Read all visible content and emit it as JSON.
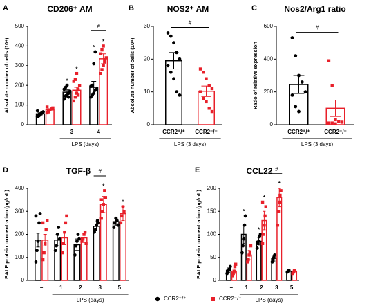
{
  "chart_data": [
    {
      "type": "grouped-bar",
      "letter": "A",
      "title": "CD206⁺ AM",
      "ylabel": "Absolute number of cells (10⁴)",
      "xlabel": "LPS (days)",
      "categories": [
        "–",
        "3",
        "4"
      ],
      "ylim": [
        0,
        500
      ],
      "yticks": [
        0,
        100,
        200,
        300,
        400,
        500
      ],
      "series": [
        {
          "color": "#000000",
          "values": [
            55,
            165,
            190
          ],
          "errors": [
            5,
            12,
            30
          ],
          "points": [
            [
              40,
              50,
              55,
              60,
              65,
              70,
              45,
              50,
              60
            ],
            [
              130,
              145,
              150,
              160,
              170,
              180,
              190,
              200,
              140
            ],
            [
              140,
              150,
              160,
              175,
              180,
              195,
              200,
              310,
              370
            ]
          ]
        },
        {
          "color": "#e8202a",
          "values": [
            75,
            175,
            335
          ],
          "errors": [
            6,
            15,
            25
          ],
          "points": [
            [
              60,
              70,
              75,
              80,
              85,
              90,
              65,
              75
            ],
            [
              120,
              140,
              160,
              180,
              200,
              220,
              230,
              260,
              150
            ],
            [
              260,
              280,
              300,
              320,
              340,
              360,
              380,
              400,
              330
            ]
          ]
        }
      ],
      "annotations": [
        {
          "text": "*",
          "category": 1,
          "series": 0
        },
        {
          "text": "*",
          "category": 1,
          "series": 1
        },
        {
          "text": "*",
          "category": 2,
          "series": 0
        },
        {
          "text": "*",
          "category": 2,
          "series": 1
        },
        {
          "text": "#",
          "from": [
            2,
            0
          ],
          "to": [
            2,
            1
          ]
        }
      ]
    },
    {
      "type": "bar",
      "letter": "B",
      "title": "NOS2⁺ AM",
      "ylabel": "Absolute number of cells (10⁴)",
      "xlabel": "LPS (3 days)",
      "categories": [
        "CCR2⁺/⁺",
        "CCR2⁻/⁻"
      ],
      "ylim": [
        0,
        30
      ],
      "yticks": [
        0,
        10,
        20,
        30
      ],
      "colors": [
        "#000000",
        "#e8202a"
      ],
      "values": [
        19.5,
        10.2
      ],
      "errors": [
        2.5,
        1.6
      ],
      "points": [
        [
          28,
          27,
          25,
          22,
          20,
          18,
          16,
          14,
          10,
          9
        ],
        [
          17,
          16,
          14,
          12,
          11,
          10,
          8,
          7,
          5,
          4
        ]
      ],
      "annotations": [
        {
          "text": "#",
          "from": [
            0
          ],
          "to": [
            1
          ]
        }
      ]
    },
    {
      "type": "bar",
      "letter": "C",
      "title": "Nos2/Arg1 ratio",
      "ylabel": "Ratio of relative expression",
      "xlabel": "LPS (3 days)",
      "categories": [
        "CCR2⁺/⁺",
        "CCR2⁻/⁻"
      ],
      "ylim": [
        0,
        600
      ],
      "yticks": [
        0,
        200,
        400,
        600
      ],
      "colors": [
        "#000000",
        "#e8202a"
      ],
      "values": [
        245,
        100
      ],
      "errors": [
        55,
        50
      ],
      "points": [
        [
          530,
          420,
          300,
          260,
          200,
          180,
          110,
          80
        ],
        [
          390,
          240,
          30,
          20,
          15,
          10,
          10,
          5
        ]
      ],
      "annotations": [
        {
          "text": "#",
          "from": [
            0
          ],
          "to": [
            1
          ]
        }
      ]
    },
    {
      "type": "grouped-bar",
      "letter": "D",
      "title": "TGF-β",
      "ylabel": "BALF protein concentration (pg/mL)",
      "xlabel": "LPS (days)",
      "categories": [
        "–",
        "1",
        "2",
        "3",
        "5"
      ],
      "ylim": [
        0,
        400
      ],
      "yticks": [
        0,
        100,
        200,
        300,
        400
      ],
      "series": [
        {
          "color": "#000000",
          "values": [
            175,
            175,
            155,
            235,
            255
          ],
          "errors": [
            30,
            25,
            25,
            20,
            15
          ],
          "points": [
            [
              80,
              130,
              170,
              250,
              290,
              280
            ],
            [
              130,
              150,
              200,
              230,
              180
            ],
            [
              110,
              150,
              170,
              200,
              180
            ],
            [
              210,
              220,
              240,
              260,
              250
            ],
            [
              230,
              250,
              270,
              260,
              240
            ]
          ]
        },
        {
          "color": "#e8202a",
          "values": [
            175,
            185,
            185,
            330,
            290
          ],
          "errors": [
            25,
            30,
            20,
            35,
            30
          ],
          "points": [
            [
              90,
              120,
              160,
              220,
              260,
              250
            ],
            [
              120,
              160,
              210,
              250,
              280
            ],
            [
              170,
              180,
              200,
              210,
              160
            ],
            [
              270,
              300,
              330,
              390,
              360,
              350
            ],
            [
              250,
              280,
              320,
              300
            ]
          ]
        }
      ],
      "annotations": [
        {
          "text": "#",
          "from": [
            3,
            0
          ],
          "to": [
            3,
            1
          ]
        },
        {
          "text": "*",
          "category": 3,
          "series": 1
        },
        {
          "text": "*",
          "category": 4,
          "series": 1
        }
      ]
    },
    {
      "type": "grouped-bar",
      "letter": "E",
      "title": "CCL22",
      "ylabel": "BALF protein concentration (pg/mL)",
      "xlabel": "LPS (days)",
      "categories": [
        "–",
        "1",
        "2",
        "3",
        "5"
      ],
      "ylim": [
        0,
        200
      ],
      "yticks": [
        0,
        50,
        100,
        150,
        200
      ],
      "series": [
        {
          "color": "#000000",
          "values": [
            22,
            100,
            85,
            48,
            20
          ],
          "errors": [
            5,
            20,
            8,
            6,
            2
          ],
          "points": [
            [
              15,
              18,
              22,
              25,
              30
            ],
            [
              60,
              75,
              90,
              120,
              140
            ],
            [
              70,
              80,
              85,
              95,
              100
            ],
            [
              40,
              45,
              50,
              55
            ],
            [
              18,
              20,
              22
            ]
          ]
        },
        {
          "color": "#e8202a",
          "values": [
            20,
            55,
            130,
            180,
            20
          ],
          "errors": [
            5,
            10,
            20,
            20,
            2
          ],
          "points": [
            [
              10,
              15,
              20,
              30,
              35
            ],
            [
              40,
              45,
              55,
              60,
              75
            ],
            [
              80,
              100,
              120,
              140,
              160,
              170
            ],
            [
              120,
              150,
              170,
              185,
              195
            ],
            [
              15,
              18,
              22
            ]
          ]
        }
      ],
      "annotations": [
        {
          "text": "*",
          "category": 1,
          "series": 0
        },
        {
          "text": "*",
          "category": 2,
          "series": 0
        },
        {
          "text": "*",
          "category": 2,
          "series": 1
        },
        {
          "text": "#",
          "from": [
            3,
            0
          ],
          "to": [
            3,
            1
          ]
        },
        {
          "text": "*",
          "category": 3,
          "series": 1
        }
      ]
    }
  ],
  "legend": [
    {
      "name": "CCR2⁺/⁺",
      "color": "#000000"
    },
    {
      "name": "CCR2⁻/⁻",
      "color": "#e8202a"
    }
  ]
}
